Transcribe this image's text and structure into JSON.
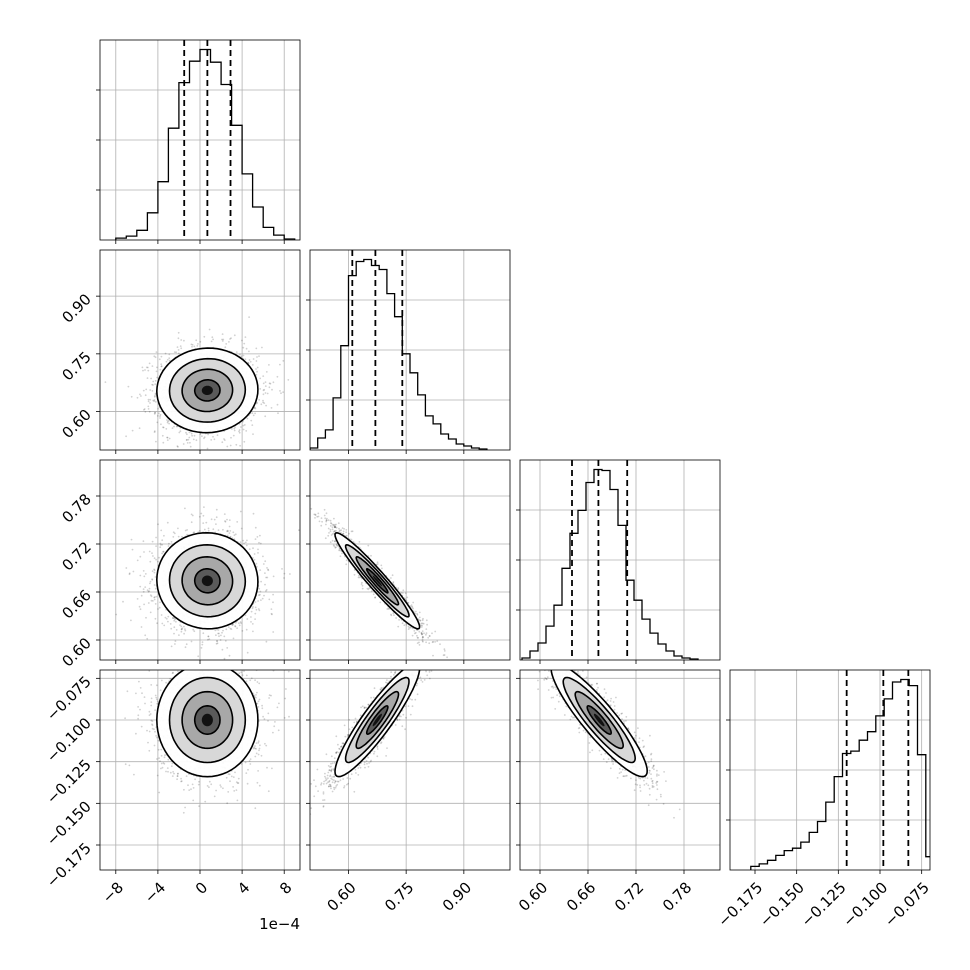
{
  "figure": {
    "offset_label": "1e−4"
  },
  "chart_data": {
    "type": "corner",
    "parameters": [
      {
        "id": "p0",
        "range": [
          -9.5,
          9.5
        ],
        "ticks": [
          -8,
          -4,
          0,
          4,
          8
        ],
        "tick_labels": [
          "−8",
          "−4",
          "0",
          "4",
          "8"
        ],
        "quantiles": [
          -1.5,
          0.7,
          2.9
        ],
        "offset": "1e−4"
      },
      {
        "id": "p1",
        "range": [
          0.5,
          1.02
        ],
        "ticks": [
          0.6,
          0.75,
          0.9
        ],
        "tick_labels": [
          "0.60",
          "0.75",
          "0.90"
        ],
        "quantiles": [
          0.61,
          0.67,
          0.74
        ]
      },
      {
        "id": "p2",
        "range": [
          0.575,
          0.825
        ],
        "ticks": [
          0.6,
          0.66,
          0.72,
          0.78
        ],
        "tick_labels": [
          "0.60",
          "0.66",
          "0.72",
          "0.78"
        ],
        "quantiles": [
          0.64,
          0.673,
          0.709
        ]
      },
      {
        "id": "p3",
        "range": [
          -0.19,
          -0.07
        ],
        "ticks": [
          -0.175,
          -0.15,
          -0.125,
          -0.1,
          -0.075
        ],
        "tick_labels": [
          "−0.175",
          "−0.150",
          "−0.125",
          "−0.100",
          "−0.075"
        ],
        "quantiles": [
          -0.12,
          -0.098,
          -0.083
        ]
      }
    ],
    "histograms": [
      {
        "param": "p0",
        "bins": [
          -8.0,
          -7.0,
          -6.0,
          -5.0,
          -4.0,
          -3.0,
          -2.0,
          -1.0,
          0.0,
          1.0,
          2.0,
          3.0,
          4.0,
          5.0,
          6.0,
          7.0,
          8.0
        ],
        "counts": [
          2,
          4,
          10,
          28,
          60,
          115,
          162,
          184,
          196,
          183,
          160,
          118,
          68,
          34,
          13,
          5,
          1
        ]
      },
      {
        "param": "p1",
        "bins": [
          0.5,
          0.52,
          0.54,
          0.56,
          0.58,
          0.6,
          0.62,
          0.64,
          0.66,
          0.68,
          0.7,
          0.72,
          0.74,
          0.76,
          0.78,
          0.8,
          0.82,
          0.84,
          0.86,
          0.88,
          0.9,
          0.92,
          0.94,
          0.96
        ],
        "counts": [
          2,
          12,
          20,
          52,
          104,
          174,
          188,
          190,
          184,
          180,
          156,
          133,
          96,
          77,
          55,
          34,
          26,
          16,
          11,
          6,
          4,
          2,
          1
        ]
      },
      {
        "param": "p2",
        "bins": [
          0.5775,
          0.5875,
          0.5975,
          0.6075,
          0.6175,
          0.6275,
          0.6375,
          0.6475,
          0.6575,
          0.6675,
          0.6775,
          0.6875,
          0.6975,
          0.7075,
          0.7175,
          0.7275,
          0.7375,
          0.7475,
          0.7575,
          0.7675,
          0.7775,
          0.7875,
          0.7975
        ],
        "counts": [
          2,
          9,
          17,
          34,
          55,
          92,
          127,
          150,
          178,
          191,
          190,
          171,
          135,
          80,
          60,
          41,
          27,
          16,
          9,
          4,
          2,
          1
        ]
      },
      {
        "param": "p3",
        "bins": [
          -0.1775,
          -0.1725,
          -0.1675,
          -0.1625,
          -0.1575,
          -0.1525,
          -0.1475,
          -0.1425,
          -0.1375,
          -0.1325,
          -0.1275,
          -0.1225,
          -0.1175,
          -0.1125,
          -0.1075,
          -0.1025,
          -0.0975,
          -0.0925,
          -0.0875,
          -0.0825,
          -0.0775,
          -0.0725
        ],
        "counts": [
          3,
          5,
          8,
          12,
          16,
          18,
          23,
          31,
          40,
          56,
          77,
          96,
          98,
          107,
          114,
          127,
          141,
          155,
          157,
          152,
          95,
          11
        ]
      }
    ],
    "scatter_panels": [
      {
        "x": "p0",
        "y": "p1",
        "center": [
          0.7,
          0.655
        ],
        "spread": [
          2.4,
          0.055
        ],
        "corr": 0.02
      },
      {
        "x": "p0",
        "y": "p2",
        "center": [
          0.7,
          0.674
        ],
        "spread": [
          2.4,
          0.03
        ],
        "corr": -0.02
      },
      {
        "x": "p1",
        "y": "p2",
        "center": [
          0.675,
          0.674
        ],
        "spread": [
          0.055,
          0.03
        ],
        "corr": -0.96
      },
      {
        "x": "p0",
        "y": "p3",
        "center": [
          0.7,
          -0.1
        ],
        "spread": [
          2.4,
          0.017
        ],
        "corr": 0.0
      },
      {
        "x": "p1",
        "y": "p3",
        "center": [
          0.675,
          -0.1
        ],
        "spread": [
          0.055,
          0.017
        ],
        "corr": 0.91
      },
      {
        "x": "p2",
        "y": "p3",
        "center": [
          0.674,
          -0.1
        ],
        "spread": [
          0.03,
          0.017
        ],
        "corr": -0.9
      }
    ],
    "grid": true,
    "colors": {
      "line": "#000000",
      "points": "#000000",
      "grid": "#b0b0b0",
      "background": "#ffffff"
    }
  }
}
